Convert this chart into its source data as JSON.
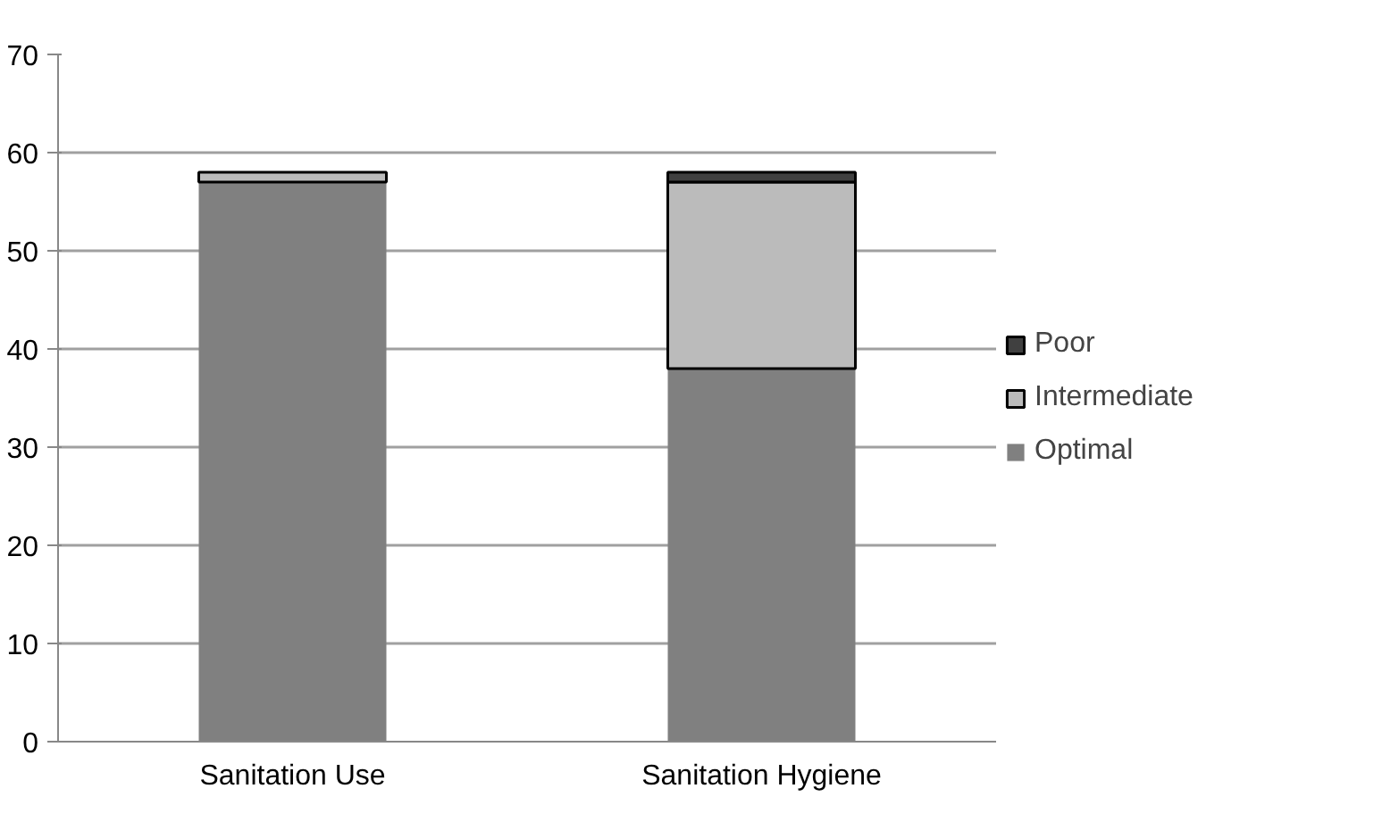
{
  "chart_data": {
    "type": "bar",
    "stacked": true,
    "categories": [
      "Sanitation Use",
      "Sanitation Hygiene"
    ],
    "series": [
      {
        "name": "Optimal",
        "color": "#808080",
        "values": [
          57,
          38
        ]
      },
      {
        "name": "Intermediate",
        "color": "#bbbbbb",
        "values": [
          1,
          19
        ]
      },
      {
        "name": "Poor",
        "color": "#404040",
        "values": [
          null,
          1
        ]
      }
    ],
    "ylim": [
      0,
      70
    ],
    "yticks": [
      0,
      10,
      20,
      30,
      40,
      50,
      60,
      70
    ],
    "grid": "y",
    "legend": "right"
  }
}
